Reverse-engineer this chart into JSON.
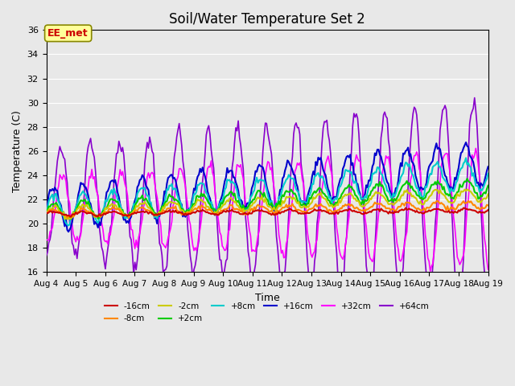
{
  "title": "Soil/Water Temperature Set 2",
  "xlabel": "Time",
  "ylabel": "Temperature (C)",
  "ylim": [
    16,
    36
  ],
  "yticks": [
    16,
    18,
    20,
    22,
    24,
    26,
    28,
    30,
    32,
    34,
    36
  ],
  "background_color": "#e8e8e8",
  "series": {
    "-16cm": {
      "color": "#cc0000",
      "lw": 1.5,
      "zorder": 5
    },
    "-8cm": {
      "color": "#ff8800",
      "lw": 1.5,
      "zorder": 5
    },
    "-2cm": {
      "color": "#cccc00",
      "lw": 1.5,
      "zorder": 5
    },
    "+2cm": {
      "color": "#00cc00",
      "lw": 1.5,
      "zorder": 5
    },
    "+8cm": {
      "color": "#00cccc",
      "lw": 1.5,
      "zorder": 5
    },
    "+16cm": {
      "color": "#0000cc",
      "lw": 1.5,
      "zorder": 5
    },
    "+32cm": {
      "color": "#ff00ff",
      "lw": 1.2,
      "zorder": 4
    },
    "+64cm": {
      "color": "#8800cc",
      "lw": 1.2,
      "zorder": 3
    }
  },
  "annotation_text": "EE_met",
  "annotation_color": "#cc0000",
  "annotation_bg": "#ffff99",
  "annotation_border": "#888800"
}
